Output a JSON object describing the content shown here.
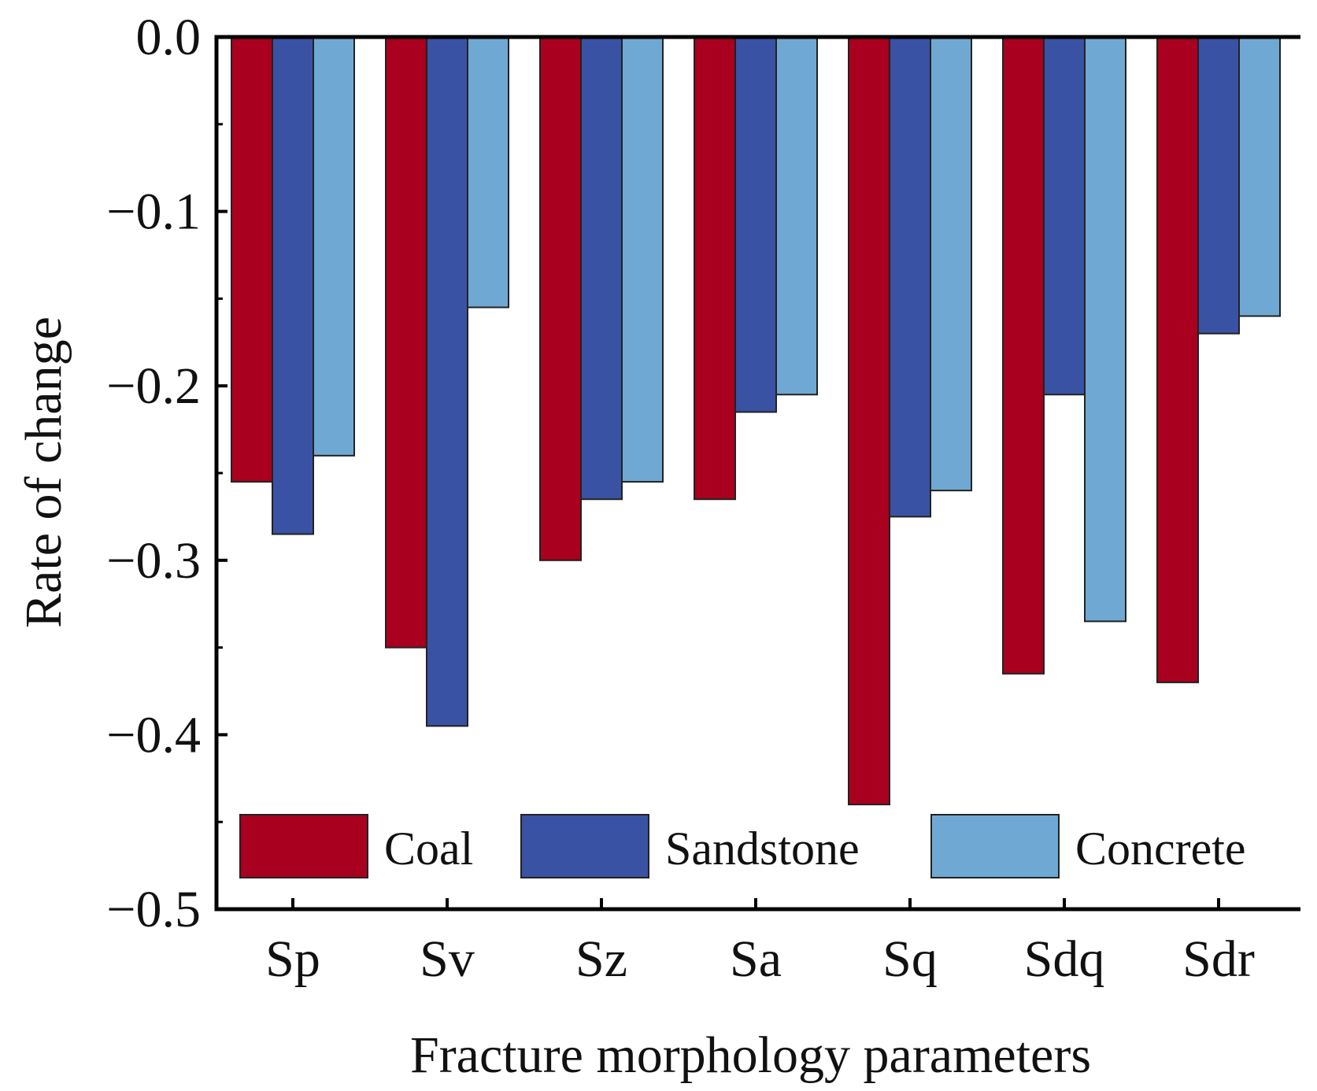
{
  "chart_data": {
    "type": "bar",
    "title": "",
    "xlabel": "Fracture morphology parameters",
    "ylabel": "Rate of change",
    "categories": [
      "Sp",
      "Sv",
      "Sz",
      "Sa",
      "Sq",
      "Sdq",
      "Sdr"
    ],
    "series": [
      {
        "name": "Coal",
        "color": "#a8001e",
        "values": [
          -0.255,
          -0.35,
          -0.3,
          -0.265,
          -0.44,
          -0.365,
          -0.37
        ]
      },
      {
        "name": "Sandstone",
        "color": "#3a52a3",
        "values": [
          -0.285,
          -0.395,
          -0.265,
          -0.215,
          -0.275,
          -0.205,
          -0.17
        ]
      },
      {
        "name": "Concrete",
        "color": "#6fa9d3",
        "values": [
          -0.24,
          -0.155,
          -0.255,
          -0.205,
          -0.26,
          -0.335,
          -0.16
        ]
      }
    ],
    "ylim": [
      -0.5,
      0.0
    ],
    "yticks": [
      "0.0",
      "−0.1",
      "−0.2",
      "−0.3",
      "−0.4",
      "−0.5"
    ],
    "ytick_values": [
      0.0,
      -0.1,
      -0.2,
      -0.3,
      -0.4,
      -0.5
    ],
    "grid": false,
    "legend": "bottom"
  }
}
